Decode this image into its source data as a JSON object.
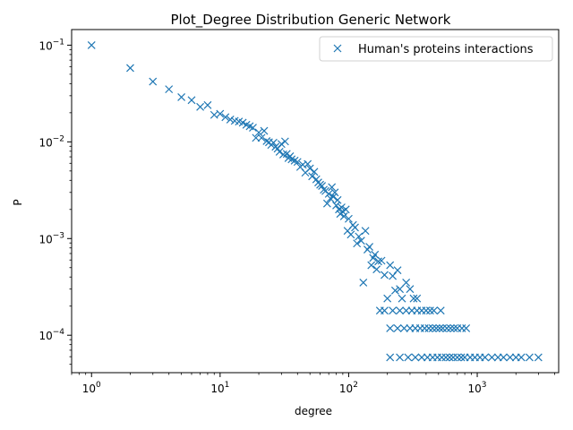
{
  "chart_data": {
    "type": "scatter",
    "title": "Plot_Degree Distribution Generic Network",
    "xlabel": "degree",
    "ylabel": "P",
    "xscale": "log",
    "yscale": "log",
    "xlim": [
      0.7,
      4300
    ],
    "ylim": [
      4.1e-05,
      0.145
    ],
    "grid": false,
    "legend_placement": "top-right",
    "marker": "x",
    "x_ticks": [
      {
        "value": 1,
        "base": "10",
        "exp": "0"
      },
      {
        "value": 10,
        "base": "10",
        "exp": "1"
      },
      {
        "value": 100,
        "base": "10",
        "exp": "2"
      },
      {
        "value": 1000,
        "base": "10",
        "exp": "3"
      }
    ],
    "y_ticks": [
      {
        "value": 0.0001,
        "base": "10",
        "exp": "−4"
      },
      {
        "value": 0.001,
        "base": "10",
        "exp": "−3"
      },
      {
        "value": 0.01,
        "base": "10",
        "exp": "−2"
      },
      {
        "value": 0.1,
        "base": "10",
        "exp": "−1"
      }
    ],
    "series": [
      {
        "name": "Human's proteins interactions",
        "color": "#1f77b4",
        "points": [
          [
            1,
            0.1
          ],
          [
            2,
            0.058
          ],
          [
            3,
            0.042
          ],
          [
            4,
            0.035
          ],
          [
            5,
            0.029
          ],
          [
            6,
            0.027
          ],
          [
            7,
            0.023
          ],
          [
            8,
            0.024
          ],
          [
            9,
            0.019
          ],
          [
            10,
            0.0195
          ],
          [
            11,
            0.018
          ],
          [
            12,
            0.017
          ],
          [
            13,
            0.0165
          ],
          [
            14,
            0.0162
          ],
          [
            15,
            0.0158
          ],
          [
            16,
            0.015
          ],
          [
            17,
            0.0145
          ],
          [
            18,
            0.014
          ],
          [
            19,
            0.011
          ],
          [
            20,
            0.0125
          ],
          [
            21,
            0.011
          ],
          [
            22,
            0.013
          ],
          [
            23,
            0.0102
          ],
          [
            24,
            0.0099
          ],
          [
            25,
            0.0093
          ],
          [
            26,
            0.0098
          ],
          [
            27,
            0.0089
          ],
          [
            28,
            0.0085
          ],
          [
            29,
            0.0079
          ],
          [
            30,
            0.0095
          ],
          [
            31,
            0.0074
          ],
          [
            32,
            0.0101
          ],
          [
            33,
            0.0075
          ],
          [
            34,
            0.0068
          ],
          [
            35,
            0.0071
          ],
          [
            36,
            0.0066
          ],
          [
            38,
            0.0064
          ],
          [
            40,
            0.0062
          ],
          [
            42,
            0.0055
          ],
          [
            44,
            0.0058
          ],
          [
            46,
            0.0048
          ],
          [
            48,
            0.0059
          ],
          [
            50,
            0.0053
          ],
          [
            52,
            0.0044
          ],
          [
            54,
            0.0049
          ],
          [
            56,
            0.0041
          ],
          [
            58,
            0.0038
          ],
          [
            60,
            0.0036
          ],
          [
            62,
            0.0035
          ],
          [
            64,
            0.0032
          ],
          [
            66,
            0.0031
          ],
          [
            68,
            0.0023
          ],
          [
            70,
            0.0029
          ],
          [
            72,
            0.0026
          ],
          [
            74,
            0.0034
          ],
          [
            76,
            0.0027
          ],
          [
            78,
            0.003
          ],
          [
            80,
            0.0022
          ],
          [
            82,
            0.0025
          ],
          [
            84,
            0.002
          ],
          [
            86,
            0.0018
          ],
          [
            88,
            0.0021
          ],
          [
            90,
            0.0019
          ],
          [
            92,
            0.0017
          ],
          [
            95,
            0.002
          ],
          [
            98,
            0.0012
          ],
          [
            100,
            0.0016
          ],
          [
            104,
            0.0011
          ],
          [
            108,
            0.00138
          ],
          [
            112,
            0.0013
          ],
          [
            116,
            0.00089
          ],
          [
            120,
            0.00105
          ],
          [
            125,
            0.00095
          ],
          [
            130,
            0.00035
          ],
          [
            135,
            0.0012
          ],
          [
            140,
            0.00077
          ],
          [
            145,
            0.00082
          ],
          [
            150,
            0.00053
          ],
          [
            155,
            0.00063
          ],
          [
            160,
            0.00068
          ],
          [
            165,
            0.00048
          ],
          [
            170,
            0.00058
          ],
          [
            175,
            0.00018
          ],
          [
            180,
            0.00059
          ],
          [
            190,
            0.00042
          ],
          [
            200,
            0.00024
          ],
          [
            210,
            0.00053
          ],
          [
            220,
            0.00041
          ],
          [
            230,
            0.00029
          ],
          [
            240,
            0.00047
          ],
          [
            250,
            0.0003
          ],
          [
            260,
            0.00024
          ],
          [
            280,
            0.00035
          ],
          [
            300,
            0.0003
          ],
          [
            320,
            0.00024
          ],
          [
            340,
            0.00024
          ],
          [
            190,
            0.00018
          ],
          [
            220,
            0.00018
          ],
          [
            250,
            0.00018
          ],
          [
            280,
            0.00018
          ],
          [
            310,
            0.00018
          ],
          [
            340,
            0.00018
          ],
          [
            370,
            0.00018
          ],
          [
            400,
            0.00018
          ],
          [
            430,
            0.00018
          ],
          [
            460,
            0.00018
          ],
          [
            520,
            0.00018
          ],
          [
            210,
            0.000118
          ],
          [
            240,
            0.000118
          ],
          [
            270,
            0.000118
          ],
          [
            300,
            0.000118
          ],
          [
            330,
            0.000118
          ],
          [
            360,
            0.000118
          ],
          [
            390,
            0.000118
          ],
          [
            420,
            0.000118
          ],
          [
            450,
            0.000118
          ],
          [
            480,
            0.000118
          ],
          [
            510,
            0.000118
          ],
          [
            540,
            0.000118
          ],
          [
            580,
            0.000118
          ],
          [
            620,
            0.000118
          ],
          [
            660,
            0.000118
          ],
          [
            700,
            0.000118
          ],
          [
            760,
            0.000118
          ],
          [
            820,
            0.000118
          ],
          [
            210,
            5.9e-05
          ],
          [
            250,
            5.9e-05
          ],
          [
            290,
            5.9e-05
          ],
          [
            330,
            5.9e-05
          ],
          [
            370,
            5.9e-05
          ],
          [
            410,
            5.9e-05
          ],
          [
            450,
            5.9e-05
          ],
          [
            490,
            5.9e-05
          ],
          [
            530,
            5.9e-05
          ],
          [
            570,
            5.9e-05
          ],
          [
            610,
            5.9e-05
          ],
          [
            650,
            5.9e-05
          ],
          [
            700,
            5.9e-05
          ],
          [
            750,
            5.9e-05
          ],
          [
            800,
            5.9e-05
          ],
          [
            880,
            5.9e-05
          ],
          [
            960,
            5.9e-05
          ],
          [
            1050,
            5.9e-05
          ],
          [
            1150,
            5.9e-05
          ],
          [
            1300,
            5.9e-05
          ],
          [
            1450,
            5.9e-05
          ],
          [
            1600,
            5.9e-05
          ],
          [
            1800,
            5.9e-05
          ],
          [
            2000,
            5.9e-05
          ],
          [
            2200,
            5.9e-05
          ],
          [
            2550,
            5.9e-05
          ],
          [
            2990,
            5.9e-05
          ]
        ]
      }
    ]
  }
}
